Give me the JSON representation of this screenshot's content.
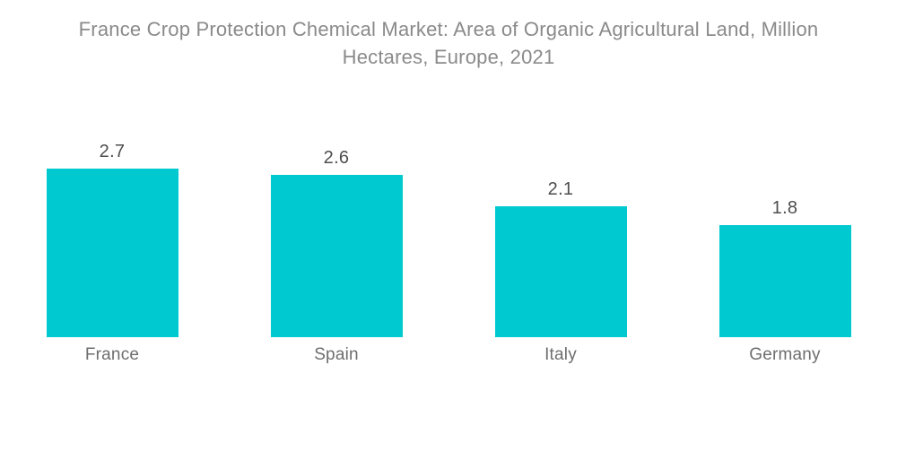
{
  "title": "France Crop Protection Chemical Market: Area of Organic Agricultural Land, Million Hectares, Europe, 2021",
  "chart_data": {
    "type": "bar",
    "title": "France Crop Protection Chemical Market: Area of Organic Agricultural Land, Million Hectares, Europe, 2021",
    "categories": [
      "France",
      "Spain",
      "Italy",
      "Germany"
    ],
    "values": [
      2.7,
      2.6,
      2.1,
      1.8
    ],
    "value_label_format": "one-decimal",
    "value_labels_shown": true,
    "xlabel": "",
    "ylabel": "",
    "ylim": [
      0,
      2.7
    ],
    "grid": false,
    "legend": "none",
    "axes_shown": false
  },
  "colors": {
    "bar": "#00CACF",
    "title_text": "#8A8A8A",
    "value_text": "#4E4E4E",
    "category_text": "#6E6E6E",
    "background": "#FFFFFF"
  }
}
